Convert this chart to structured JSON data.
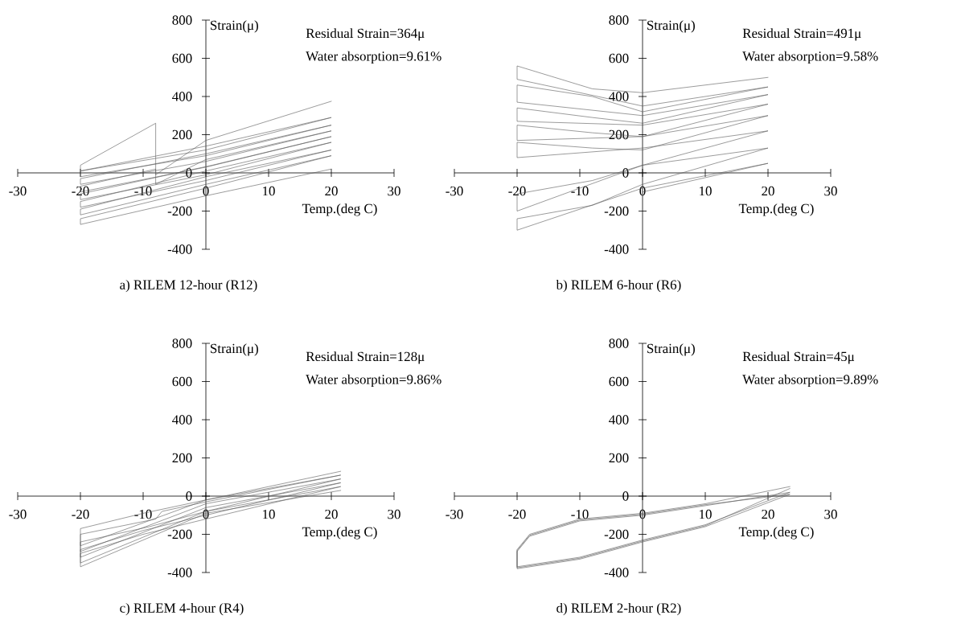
{
  "chart_data": [
    {
      "type": "line",
      "title": "a) RILEM 12-hour (R12)",
      "xlabel": "Temp.(deg C)",
      "ylabel": "Strain(μ)",
      "annotations": [
        "Residual Strain=364μ",
        "Water absorption=9.61%"
      ],
      "xlim": [
        -30,
        30
      ],
      "xticks": [
        -30,
        -20,
        -10,
        0,
        10,
        20,
        30
      ],
      "ylim": [
        -400,
        800
      ],
      "yticks": [
        -400,
        -200,
        0,
        200,
        400,
        600,
        800
      ],
      "series": [
        {
          "color": "#595959",
          "x": [
            20,
            0,
            -20,
            -20,
            0,
            20,
            0,
            -20,
            -20,
            0,
            20,
            0,
            -20,
            -20,
            0,
            20,
            0,
            -20,
            -20,
            1,
            20,
            0,
            -20,
            -20,
            -8,
            -8,
            0,
            20,
            0,
            -20,
            -20,
            0,
            20,
            0,
            -20,
            -20,
            0,
            20,
            0,
            -20,
            -20,
            -8,
            -8,
            0,
            20
          ],
          "values": [
            20,
            -120,
            -270,
            -240,
            -80,
            90,
            -60,
            -220,
            -190,
            -20,
            120,
            -40,
            -180,
            -150,
            10,
            160,
            -10,
            -140,
            -110,
            40,
            190,
            30,
            -100,
            -70,
            20,
            -60,
            70,
            220,
            60,
            -60,
            -30,
            100,
            250,
            90,
            -20,
            10,
            140,
            290,
            120,
            10,
            40,
            260,
            -10,
            170,
            375
          ]
        }
      ]
    },
    {
      "type": "line",
      "title": "b) RILEM 6-hour (R6)",
      "xlabel": "Temp.(deg C)",
      "ylabel": "Strain(μ)",
      "annotations": [
        "Residual Strain=491μ",
        "Water absorption=9.58%"
      ],
      "xlim": [
        -30,
        30
      ],
      "xticks": [
        -30,
        -20,
        -10,
        0,
        10,
        20,
        30
      ],
      "ylim": [
        -400,
        800
      ],
      "yticks": [
        -400,
        -200,
        0,
        200,
        400,
        600,
        800
      ],
      "series": [
        {
          "color": "#595959",
          "x": [
            0,
            20,
            0,
            -20,
            -20,
            -8,
            0,
            20,
            0,
            -20,
            -20,
            -8,
            0,
            20,
            0,
            -20,
            -20,
            -8,
            0,
            20,
            0,
            -20,
            -20,
            -8,
            0,
            20,
            0,
            -20,
            -20,
            -8,
            0,
            20,
            0,
            -20,
            -20,
            -8,
            0,
            20,
            0,
            -20,
            -20,
            -8,
            0,
            20
          ],
          "values": [
            -100,
            50,
            -80,
            -300,
            -240,
            -170,
            -60,
            130,
            40,
            -200,
            -110,
            -40,
            40,
            220,
            130,
            80,
            160,
            130,
            120,
            300,
            190,
            170,
            250,
            210,
            190,
            360,
            250,
            270,
            340,
            290,
            260,
            410,
            300,
            370,
            460,
            400,
            320,
            450,
            350,
            490,
            560,
            440,
            420,
            500
          ]
        }
      ]
    },
    {
      "type": "line",
      "title": "c) RILEM 4-hour (R4)",
      "xlabel": "Temp.(deg C)",
      "ylabel": "Strain(μ)",
      "annotations": [
        "Residual Strain=128μ",
        "Water absorption=9.86%"
      ],
      "xlim": [
        -30,
        30
      ],
      "xticks": [
        -30,
        -20,
        -10,
        0,
        10,
        20,
        30
      ],
      "ylim": [
        -400,
        800
      ],
      "yticks": [
        -400,
        -200,
        0,
        200,
        400,
        600,
        800
      ],
      "series": [
        {
          "color": "#595959",
          "x": [
            21.5,
            0,
            -20,
            -20,
            -10,
            0,
            21.5,
            0,
            -20,
            -20,
            -10,
            0,
            21.5,
            0,
            -20,
            -20,
            -9,
            0,
            21.5,
            0,
            -20,
            -20,
            -8,
            -7,
            0,
            21.5,
            0,
            -20,
            -20,
            -10,
            0,
            21.5
          ],
          "values": [
            30,
            -90,
            -370,
            -300,
            -200,
            -120,
            50,
            -80,
            -350,
            -280,
            -180,
            -100,
            70,
            -60,
            -320,
            -240,
            -160,
            -80,
            90,
            -40,
            -290,
            -200,
            -120,
            -80,
            -30,
            110,
            -20,
            -260,
            -170,
            -90,
            -20,
            130
          ]
        }
      ]
    },
    {
      "type": "line",
      "title": "d) RILEM 2-hour (R2)",
      "xlabel": "Temp.(deg C)",
      "ylabel": "Strain(μ)",
      "annotations": [
        "Residual Strain=45μ",
        "Water absorption=9.89%"
      ],
      "xlim": [
        -30,
        30
      ],
      "xticks": [
        -30,
        -20,
        -10,
        0,
        10,
        20,
        30
      ],
      "ylim": [
        -400,
        800
      ],
      "yticks": [
        -400,
        -200,
        0,
        200,
        400,
        600,
        800
      ],
      "series": [
        {
          "color": "#595959",
          "x": [
            23.5,
            10,
            0,
            -10,
            -18,
            -20,
            -20,
            -10,
            0,
            10,
            23.5,
            10,
            0,
            -10,
            -18,
            -20,
            -20,
            -10,
            0,
            10,
            23.5,
            10,
            0,
            -10,
            -18,
            -20,
            -20,
            -10,
            0,
            10,
            23.5
          ],
          "values": [
            50,
            -40,
            -90,
            -120,
            -200,
            -280,
            -370,
            -320,
            -230,
            -150,
            20,
            -50,
            -100,
            -130,
            -210,
            -290,
            -380,
            -330,
            -240,
            -160,
            10,
            -45,
            -95,
            -125,
            -205,
            -285,
            -375,
            -325,
            -235,
            -155,
            40
          ]
        }
      ]
    }
  ]
}
